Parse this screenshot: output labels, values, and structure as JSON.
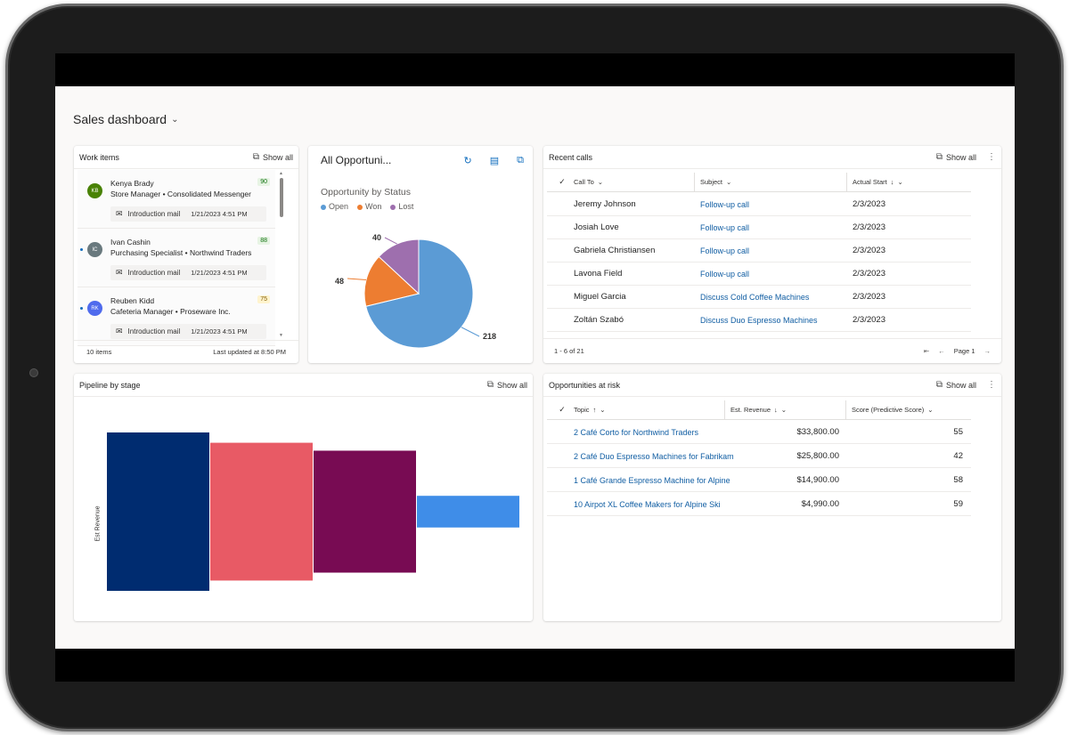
{
  "dashboard": {
    "title": "Sales dashboard"
  },
  "work_items": {
    "title": "Work items",
    "show_all": "Show all",
    "items": [
      {
        "initials": "KB",
        "avatar_color": "#498205",
        "name": "Kenya Brady",
        "role": "Store Manager • Consolidated Messenger",
        "score": "90",
        "activity": "Introduction mail",
        "timestamp": "1/21/2023 4:51 PM",
        "unread": false
      },
      {
        "initials": "IC",
        "avatar_color": "#69797e",
        "name": "Ivan Cashin",
        "role": "Purchasing Specialist • Northwind Traders",
        "score": "88",
        "activity": "Introduction mail",
        "timestamp": "1/21/2023 4:51 PM",
        "unread": true
      },
      {
        "initials": "RK",
        "avatar_color": "#4f6bed",
        "name": "Reuben Kidd",
        "role": "Cafeteria Manager • Proseware Inc.",
        "score": "75",
        "activity": "Introduction mail",
        "timestamp": "1/21/2023 4:51 PM",
        "unread": true
      }
    ],
    "count": "10 items",
    "last_updated": "Last updated at 8:50 PM"
  },
  "opportunities": {
    "title": "All Opportuni...",
    "icons": [
      "refresh-icon",
      "report-icon",
      "expand-icon"
    ]
  },
  "chart_data": [
    {
      "type": "pie",
      "title": "Opportunity by Status",
      "categories": [
        "Open",
        "Won",
        "Lost"
      ],
      "values": [
        218,
        48,
        40
      ],
      "colors": [
        "#5b9bd5",
        "#ed7d31",
        "#9e6fae"
      ],
      "legend": "top-left",
      "data_labels": true
    },
    {
      "type": "bar",
      "title": "Pipeline by stage",
      "ylabel": "Est Revenue",
      "categories": [
        "",
        "",
        "",
        ""
      ],
      "values": [
        100,
        87,
        77,
        20
      ],
      "colors": [
        "#002c70",
        "#e85a65",
        "#780b53",
        "#3f8de8"
      ],
      "ylim": [
        0,
        100
      ]
    }
  ],
  "recent_calls": {
    "title": "Recent calls",
    "show_all": "Show all",
    "columns": [
      "Call To",
      "Subject",
      "Actual Start"
    ],
    "rows": [
      {
        "call_to": "Jeremy Johnson",
        "subject": "Follow-up call",
        "start": "2/3/2023"
      },
      {
        "call_to": "Josiah Love",
        "subject": "Follow-up call",
        "start": "2/3/2023"
      },
      {
        "call_to": "Gabriela Christiansen",
        "subject": "Follow-up call",
        "start": "2/3/2023"
      },
      {
        "call_to": "Lavona Field",
        "subject": "Follow-up call",
        "start": "2/3/2023"
      },
      {
        "call_to": "Miguel Garcia",
        "subject": "Discuss Cold Coffee Machines",
        "start": "2/3/2023"
      },
      {
        "call_to": "Zoltán Szabó",
        "subject": "Discuss Duo Espresso Machines",
        "start": "2/3/2023"
      }
    ],
    "range": "1 - 6 of 21",
    "page": "Page 1"
  },
  "pipeline": {
    "title": "Pipeline by stage",
    "show_all": "Show all"
  },
  "at_risk": {
    "title": "Opportunities at risk",
    "show_all": "Show all",
    "columns": [
      "Topic",
      "Est. Revenue",
      "Score (Predictive Score)"
    ],
    "rows": [
      {
        "topic": "2 Café Corto for Northwind Traders",
        "revenue": "$33,800.00",
        "score": "55"
      },
      {
        "topic": "2 Café Duo Espresso Machines for Fabrikam",
        "revenue": "$25,800.00",
        "score": "42"
      },
      {
        "topic": "1 Café Grande Espresso Machine for Alpine",
        "revenue": "$14,900.00",
        "score": "58"
      },
      {
        "topic": "10 Airpot XL Coffee Makers for Alpine Ski",
        "revenue": "$4,990.00",
        "score": "59"
      }
    ]
  }
}
